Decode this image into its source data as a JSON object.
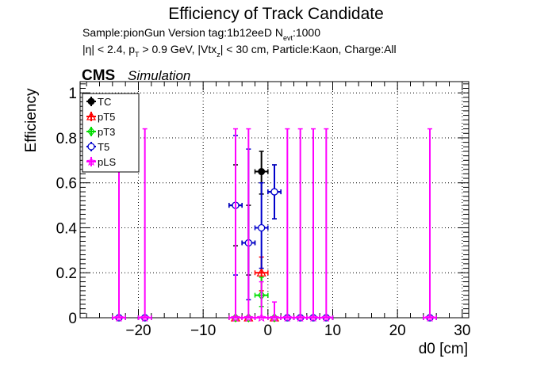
{
  "chart_data": {
    "type": "scatter",
    "title": "Efficiency of Track Candidate",
    "subtitle_sample": "Sample:pionGun   Version tag:1b12eeD  N",
    "subtitle_nevt_sub": "evt",
    "subtitle_nevt_value": ":1000",
    "cuts_eta": "|η| < 2.4, p",
    "cuts_pt_sub": "T",
    "cuts_mid": " > 0.9 GeV, |Vtx",
    "cuts_vtx_sub": "z",
    "cuts_end": "| < 30 cm, Particle:Kaon, Charge:All",
    "cms_label": "CMS",
    "simulation_label": "Simulation",
    "xlabel": "d0 [cm]",
    "ylabel": "Efficiency",
    "xlim": [
      -29,
      31
    ],
    "ylim": [
      0,
      1.05
    ],
    "xticks": [
      -20,
      -10,
      0,
      10,
      20,
      30
    ],
    "xtick_labels": [
      "−20",
      "−10",
      "0",
      "10",
      "20",
      "30"
    ],
    "yticks": [
      0,
      0.2,
      0.4,
      0.6,
      0.8,
      1
    ],
    "ytick_labels": [
      "0",
      "0.2",
      "0.4",
      "0.6",
      "0.8",
      "1"
    ],
    "grid": true,
    "legend_position": "top-left",
    "series": [
      {
        "name": "TC",
        "color": "#000000",
        "marker": "filled-circle",
        "points": [
          {
            "x": -23,
            "y": 0,
            "lo": 0,
            "hi": 0
          },
          {
            "x": -19,
            "y": 0,
            "lo": 0,
            "hi": 0
          },
          {
            "x": -5,
            "y": 0.5,
            "lo": 0.32,
            "hi": 0.68
          },
          {
            "x": -3,
            "y": 0.333,
            "lo": 0.19,
            "hi": 0.5
          },
          {
            "x": -1,
            "y": 0.65,
            "lo": 0.55,
            "hi": 0.74
          },
          {
            "x": 1,
            "y": 0.56,
            "lo": 0.44,
            "hi": 0.68
          },
          {
            "x": 3,
            "y": 0,
            "lo": 0,
            "hi": 0
          },
          {
            "x": 5,
            "y": 0,
            "lo": 0,
            "hi": 0
          },
          {
            "x": 7,
            "y": 0,
            "lo": 0,
            "hi": 0
          },
          {
            "x": 9,
            "y": 0,
            "lo": 0,
            "hi": 0
          },
          {
            "x": 25,
            "y": 0,
            "lo": 0,
            "hi": 0
          }
        ]
      },
      {
        "name": "pT5",
        "color": "#ff0000",
        "marker": "open-triangle",
        "points": [
          {
            "x": -5,
            "y": 0,
            "lo": 0,
            "hi": 0
          },
          {
            "x": -3,
            "y": 0,
            "lo": 0,
            "hi": 0
          },
          {
            "x": -1,
            "y": 0.2,
            "lo": 0.12,
            "hi": 0.27
          },
          {
            "x": 1,
            "y": 0,
            "lo": 0,
            "hi": 0
          }
        ]
      },
      {
        "name": "pT3",
        "color": "#00dd00",
        "marker": "open-diamond",
        "points": [
          {
            "x": -5,
            "y": 0,
            "lo": 0,
            "hi": 0
          },
          {
            "x": -3,
            "y": 0,
            "lo": 0,
            "hi": 0
          },
          {
            "x": -1,
            "y": 0.1,
            "lo": 0.05,
            "hi": 0.18
          },
          {
            "x": 1,
            "y": 0,
            "lo": 0,
            "hi": 0
          }
        ]
      },
      {
        "name": "T5",
        "color": "#0000cc",
        "marker": "open-circle",
        "points": [
          {
            "x": -23,
            "y": 0,
            "lo": 0,
            "hi": 0
          },
          {
            "x": -19,
            "y": 0,
            "lo": 0,
            "hi": 0
          },
          {
            "x": -5,
            "y": 0.5,
            "lo": 0.19,
            "hi": 0.81
          },
          {
            "x": -3,
            "y": 0.333,
            "lo": 0.08,
            "hi": 0.75
          },
          {
            "x": -1,
            "y": 0.4,
            "lo": 0.22,
            "hi": 0.6
          },
          {
            "x": 1,
            "y": 0.56,
            "lo": 0.44,
            "hi": 0.68
          },
          {
            "x": 3,
            "y": 0,
            "lo": 0,
            "hi": 0
          },
          {
            "x": 5,
            "y": 0,
            "lo": 0,
            "hi": 0
          },
          {
            "x": 7,
            "y": 0,
            "lo": 0,
            "hi": 0
          },
          {
            "x": 9,
            "y": 0,
            "lo": 0,
            "hi": 0
          },
          {
            "x": 25,
            "y": 0,
            "lo": 0,
            "hi": 0
          }
        ]
      },
      {
        "name": "pLS",
        "color": "#ff00ff",
        "marker": "open-star",
        "points": [
          {
            "x": -23,
            "y": 0,
            "lo": 0,
            "hi": 0.84
          },
          {
            "x": -19,
            "y": 0,
            "lo": 0,
            "hi": 0.84
          },
          {
            "x": -5,
            "y": 0,
            "lo": 0,
            "hi": 0.84
          },
          {
            "x": -3,
            "y": 0,
            "lo": 0,
            "hi": 0.84
          },
          {
            "x": -1,
            "y": 0,
            "lo": 0,
            "hi": 0.16
          },
          {
            "x": 1,
            "y": 0,
            "lo": 0,
            "hi": 0.07
          },
          {
            "x": 3,
            "y": 0,
            "lo": 0,
            "hi": 0.84
          },
          {
            "x": 5,
            "y": 0,
            "lo": 0,
            "hi": 0.84
          },
          {
            "x": 7,
            "y": 0,
            "lo": 0,
            "hi": 0.84
          },
          {
            "x": 9,
            "y": 0,
            "lo": 0,
            "hi": 0.84
          },
          {
            "x": 25,
            "y": 0,
            "lo": 0,
            "hi": 0.84
          }
        ]
      }
    ]
  }
}
